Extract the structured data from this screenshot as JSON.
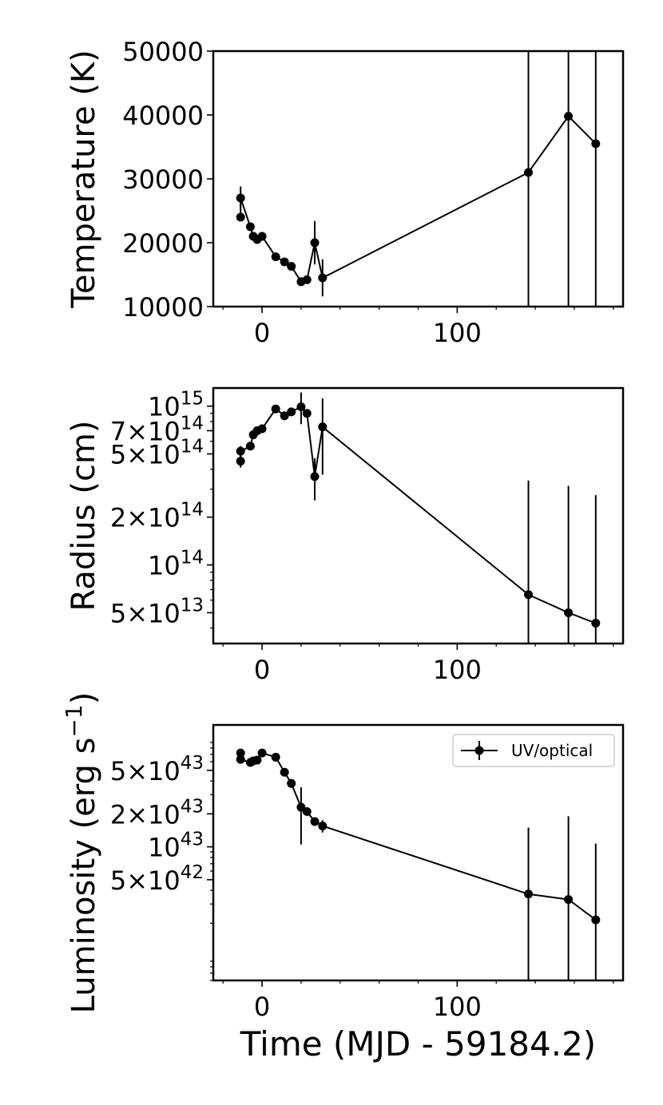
{
  "chart_data": [
    {
      "type": "line",
      "panel": "temperature",
      "ylabel": "Temperature (K)",
      "xlabel": "",
      "yscale": "linear",
      "ylim": [
        10000,
        50000
      ],
      "xlim": [
        -25,
        185
      ],
      "yticks": [
        {
          "value": 10000,
          "label": "10000"
        },
        {
          "value": 20000,
          "label": "20000"
        },
        {
          "value": 30000,
          "label": "30000"
        },
        {
          "value": 40000,
          "label": "40000"
        },
        {
          "value": 50000,
          "label": "50000"
        }
      ],
      "xticks": [
        {
          "value": 0,
          "label": "0"
        },
        {
          "value": 100,
          "label": "100"
        }
      ],
      "points": [
        {
          "x": -11.0,
          "y": 24000,
          "err": 0
        },
        {
          "x": -11.0,
          "y": 27000,
          "err": 1800
        },
        {
          "x": -6.0,
          "y": 22500,
          "err": 600
        },
        {
          "x": -4.5,
          "y": 21000,
          "err": 500
        },
        {
          "x": -2.5,
          "y": 20500,
          "err": 500
        },
        {
          "x": 0.0,
          "y": 21000,
          "err": 500
        },
        {
          "x": 7.0,
          "y": 17800,
          "err": 300
        },
        {
          "x": 11.5,
          "y": 17000,
          "err": 300
        },
        {
          "x": 15.0,
          "y": 16300,
          "err": 300
        },
        {
          "x": 20.0,
          "y": 13900,
          "err": 300
        },
        {
          "x": 23.0,
          "y": 14200,
          "err": 300
        },
        {
          "x": 27.0,
          "y": 20000,
          "err": 3400
        },
        {
          "x": 31.0,
          "y": 14500,
          "err": 2900
        },
        {
          "x": 136.5,
          "y": 31000,
          "err": 40000
        },
        {
          "x": 157.0,
          "y": 39800,
          "err": 40000
        },
        {
          "x": 171.0,
          "y": 35500,
          "err": 40000
        }
      ]
    },
    {
      "type": "line",
      "panel": "radius",
      "ylabel": "Radius (cm)",
      "xlabel": "",
      "yscale": "log",
      "ylim": [
        32000000000000.0,
        1300000000000000.0
      ],
      "xlim": [
        -25,
        185
      ],
      "yticks": [
        {
          "value": 50000000000000.0,
          "label": "5×10",
          "exp": "13"
        },
        {
          "value": 100000000000000.0,
          "label": "10",
          "exp": "14"
        },
        {
          "value": 200000000000000.0,
          "label": "2×10",
          "exp": "14"
        },
        {
          "value": 500000000000000.0,
          "label": "5×10",
          "exp": "14"
        },
        {
          "value": 700000000000000.0,
          "label": "7×10",
          "exp": "14"
        },
        {
          "value": 1000000000000000.0,
          "label": "10",
          "exp": "15"
        }
      ],
      "xticks": [
        {
          "value": 0,
          "label": "0"
        },
        {
          "value": 100,
          "label": "100"
        }
      ],
      "points": [
        {
          "x": -11.0,
          "y": 450000000000000.0,
          "lo": 410000000000000.0,
          "hi": 490000000000000.0
        },
        {
          "x": -11.0,
          "y": 520000000000000.0,
          "lo": 480000000000000.0,
          "hi": 560000000000000.0
        },
        {
          "x": -6.0,
          "y": 560000000000000.0,
          "lo": 530000000000000.0,
          "hi": 590000000000000.0
        },
        {
          "x": -4.5,
          "y": 660000000000000.0,
          "lo": 630000000000000.0,
          "hi": 690000000000000.0
        },
        {
          "x": -2.5,
          "y": 700000000000000.0,
          "lo": 670000000000000.0,
          "hi": 730000000000000.0
        },
        {
          "x": 0.0,
          "y": 720000000000000.0,
          "lo": 690000000000000.0,
          "hi": 750000000000000.0
        },
        {
          "x": 7.0,
          "y": 960000000000000.0,
          "lo": 930000000000000.0,
          "hi": 990000000000000.0
        },
        {
          "x": 11.5,
          "y": 870000000000000.0,
          "lo": 840000000000000.0,
          "hi": 900000000000000.0
        },
        {
          "x": 15.0,
          "y": 920000000000000.0,
          "lo": 890000000000000.0,
          "hi": 950000000000000.0
        },
        {
          "x": 20.0,
          "y": 990000000000000.0,
          "lo": 770000000000000.0,
          "hi": 1220000000000000.0
        },
        {
          "x": 23.0,
          "y": 900000000000000.0,
          "lo": 860000000000000.0,
          "hi": 940000000000000.0
        },
        {
          "x": 27.0,
          "y": 360000000000000.0,
          "lo": 255000000000000.0,
          "hi": 470000000000000.0
        },
        {
          "x": 31.0,
          "y": 740000000000000.0,
          "lo": 370000000000000.0,
          "hi": 1120000000000000.0
        },
        {
          "x": 136.5,
          "y": 65000000000000.0,
          "lo": 32000000000000.0,
          "hi": 340000000000000.0
        },
        {
          "x": 157.0,
          "y": 50000000000000.0,
          "lo": 32000000000000.0,
          "hi": 315000000000000.0
        },
        {
          "x": 171.0,
          "y": 43000000000000.0,
          "lo": 32000000000000.0,
          "hi": 275000000000000.0
        }
      ]
    },
    {
      "type": "line",
      "panel": "luminosity",
      "ylabel": "Luminosity (erg s",
      "ylabel_sup": "−1",
      "ylabel_close": ")",
      "xlabel": "Time (MJD - 59184.2)",
      "yscale": "log",
      "ylim": [
        6e+41,
        1.3e+44
      ],
      "xlim": [
        -25,
        185
      ],
      "yticks": [
        {
          "value": 5e+42,
          "label": "5×10",
          "exp": "42"
        },
        {
          "value": 1e+43,
          "label": "10",
          "exp": "43"
        },
        {
          "value": 2e+43,
          "label": "2×10",
          "exp": "43"
        },
        {
          "value": 5e+43,
          "label": "5×10",
          "exp": "43"
        }
      ],
      "xticks": [
        {
          "value": 0,
          "label": "0"
        },
        {
          "value": 100,
          "label": "100"
        }
      ],
      "legend": {
        "label": "UV/optical",
        "placement": "top-right"
      },
      "points": [
        {
          "x": -11.0,
          "y": 7.2e+43,
          "lo": 7e+43,
          "hi": 7.4e+43
        },
        {
          "x": -11.0,
          "y": 6.3e+43,
          "lo": 6.1e+43,
          "hi": 6.5e+43
        },
        {
          "x": -6.0,
          "y": 5.9e+43,
          "lo": 5.7e+43,
          "hi": 6.1e+43
        },
        {
          "x": -4.5,
          "y": 6.1e+43,
          "lo": 5.9e+43,
          "hi": 6.3e+43
        },
        {
          "x": -2.5,
          "y": 6.2e+43,
          "lo": 6e+43,
          "hi": 6.4e+43
        },
        {
          "x": 0.0,
          "y": 7.2e+43,
          "lo": 7e+43,
          "hi": 7.4e+43
        },
        {
          "x": 7.0,
          "y": 6.6e+43,
          "lo": 6.4e+43,
          "hi": 6.8e+43
        },
        {
          "x": 11.5,
          "y": 4.8e+43,
          "lo": 4.6e+43,
          "hi": 5e+43
        },
        {
          "x": 15.0,
          "y": 3.8e+43,
          "lo": 3.7e+43,
          "hi": 3.9e+43
        },
        {
          "x": 20.0,
          "y": 2.3e+43,
          "lo": 1.05e+43,
          "hi": 3.5e+43
        },
        {
          "x": 23.0,
          "y": 2.1e+43,
          "lo": 1.95e+43,
          "hi": 2.25e+43
        },
        {
          "x": 27.0,
          "y": 1.7e+43,
          "lo": 1.6e+43,
          "hi": 1.8e+43
        },
        {
          "x": 31.0,
          "y": 1.55e+43,
          "lo": 1.35e+43,
          "hi": 1.75e+43
        },
        {
          "x": 136.5,
          "y": 3.7e+42,
          "lo": 6e+41,
          "hi": 1.5e+43
        },
        {
          "x": 157.0,
          "y": 3.3e+42,
          "lo": 6e+41,
          "hi": 1.9e+43
        },
        {
          "x": 171.0,
          "y": 2.15e+42,
          "lo": 6e+41,
          "hi": 1.07e+43
        }
      ]
    }
  ]
}
